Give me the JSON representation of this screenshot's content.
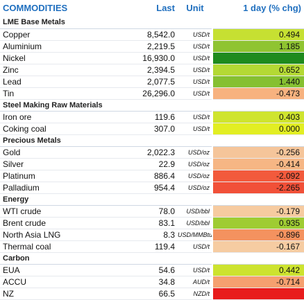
{
  "header": {
    "name": "COMMODITIES",
    "last": "Last",
    "unit": "Unit",
    "change": "1 day (% chg)"
  },
  "sections": [
    {
      "title": "LME Base Metals",
      "rows": [
        {
          "name": "Copper",
          "last": "8,542.0",
          "unit": "USD/t",
          "chg": "0.494",
          "color": "#c6e032"
        },
        {
          "name": "Aluminium",
          "last": "2,219.5",
          "unit": "USD/t",
          "chg": "1.185",
          "color": "#8fc431"
        },
        {
          "name": "Nickel",
          "last": "16,930.0",
          "unit": "USD/t",
          "chg": "",
          "color": "#1e8a1e"
        },
        {
          "name": "Zinc",
          "last": "2,394.5",
          "unit": "USD/t",
          "chg": "0.652",
          "color": "#b4d934"
        },
        {
          "name": "Lead",
          "last": "2,077.5",
          "unit": "USD/t",
          "chg": "1.440",
          "color": "#86c031"
        },
        {
          "name": "Tin",
          "last": "26,296.0",
          "unit": "USD/t",
          "chg": "-0.473",
          "color": "#f7b27f"
        }
      ]
    },
    {
      "title": "Steel Making Raw Materials",
      "rows": [
        {
          "name": "Iron ore",
          "last": "119.6",
          "unit": "USD/t",
          "chg": "0.403",
          "color": "#cfe42f"
        },
        {
          "name": "Coking coal",
          "last": "307.0",
          "unit": "USD/t",
          "chg": "0.000",
          "color": "#e2ee23"
        }
      ]
    },
    {
      "title": "Precious Metals",
      "rows": [
        {
          "name": "Gold",
          "last": "2,022.3",
          "unit": "USD/oz",
          "chg": "-0.256",
          "color": "#f5c59a"
        },
        {
          "name": "Silver",
          "last": "22.9",
          "unit": "USD/oz",
          "chg": "-0.414",
          "color": "#f6b684"
        },
        {
          "name": "Platinum",
          "last": "886.4",
          "unit": "USD/oz",
          "chg": "-2.092",
          "color": "#f25a3c"
        },
        {
          "name": "Palladium",
          "last": "954.4",
          "unit": "USD/oz",
          "chg": "-2.265",
          "color": "#f15038"
        }
      ]
    },
    {
      "title": "Energy",
      "rows": [
        {
          "name": "WTI crude",
          "last": "78.0",
          "unit": "USD/bbl",
          "chg": "-0.179",
          "color": "#f6cba0"
        },
        {
          "name": "Brent crude",
          "last": "83.1",
          "unit": "USD/bbl",
          "chg": "0.935",
          "color": "#9fcc33"
        },
        {
          "name": "North Asia LNG",
          "last": "8.3",
          "unit": "USD/MMBtu",
          "chg": "-0.896",
          "color": "#f4925f"
        },
        {
          "name": "Thermal coal",
          "last": "119.4",
          "unit": "USD/t",
          "chg": "-0.167",
          "color": "#f6cca2"
        }
      ]
    },
    {
      "title": "Carbon",
      "rows": [
        {
          "name": "EUA",
          "last": "54.6",
          "unit": "USD/t",
          "chg": "0.442",
          "color": "#cde32f"
        },
        {
          "name": "ACCU",
          "last": "34.8",
          "unit": "AUD/t",
          "chg": "-0.714",
          "color": "#f5a06f"
        },
        {
          "name": "NZ",
          "last": "66.5",
          "unit": "NZD/t",
          "chg": "",
          "color": "#e81c1c"
        }
      ]
    }
  ]
}
